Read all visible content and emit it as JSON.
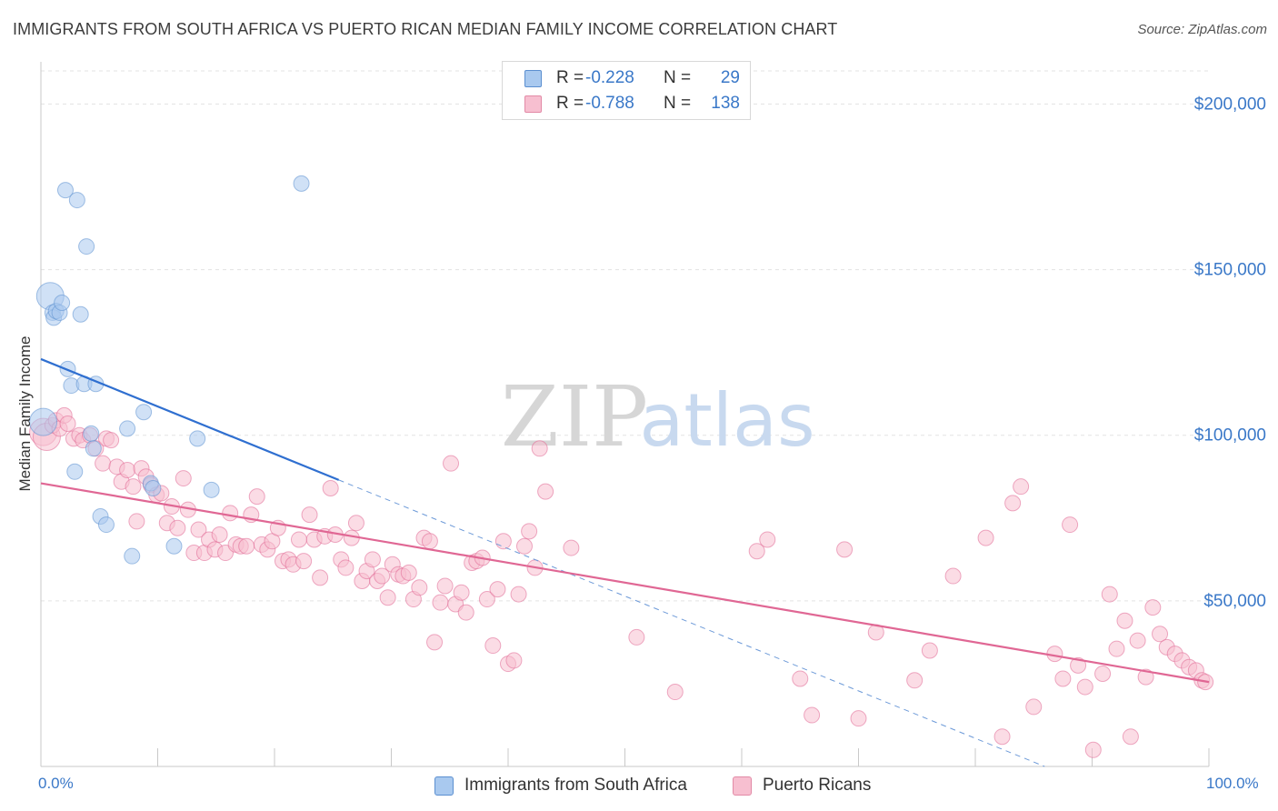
{
  "title": "IMMIGRANTS FROM SOUTH AFRICA VS PUERTO RICAN MEDIAN FAMILY INCOME CORRELATION CHART",
  "source": "Source: ZipAtlas.com",
  "watermark": {
    "zip": "ZIP",
    "atlas": "atlas"
  },
  "legend": {
    "rows": [
      {
        "r_label": "R =",
        "r_value": "-0.228",
        "n_label": "N =",
        "n_value": "29",
        "color": "#a9c9ef",
        "border": "#5b8fd0"
      },
      {
        "r_label": "R =",
        "r_value": "-0.788",
        "n_label": "N =",
        "n_value": "138",
        "color": "#f7bfd0",
        "border": "#e28aa6"
      }
    ]
  },
  "bottom_legend": [
    {
      "label": "Immigrants from South Africa",
      "color": "#a9c9ef",
      "border": "#5b8fd0"
    },
    {
      "label": "Puerto Ricans",
      "color": "#f7bfd0",
      "border": "#e28aa6"
    }
  ],
  "chart_data": {
    "type": "scatter",
    "title": "IMMIGRANTS FROM SOUTH AFRICA VS PUERTO RICAN MEDIAN FAMILY INCOME CORRELATION CHART",
    "xlabel": "",
    "ylabel": "Median Family Income",
    "xlim": [
      0,
      100
    ],
    "ylim": [
      0,
      210000
    ],
    "x_tick_labels": [
      "0.0%",
      "100.0%"
    ],
    "y_ticks": [
      50000,
      100000,
      150000,
      200000
    ],
    "y_tick_labels": [
      "$50,000",
      "$100,000",
      "$150,000",
      "$200,000"
    ],
    "grid": true,
    "series": [
      {
        "name": "Immigrants from South Africa",
        "color": "#5b8fd0",
        "fill": "#a9c9ef",
        "trend": {
          "x0": 0,
          "y0": 123000,
          "x1": 25.5,
          "y1": 86500,
          "dashed_to_x": 100
        },
        "points": [
          [
            0.2,
            104000
          ],
          [
            0.8,
            142000
          ],
          [
            1.0,
            137000
          ],
          [
            1.1,
            135500
          ],
          [
            1.3,
            137500
          ],
          [
            1.6,
            137000
          ],
          [
            1.8,
            140000
          ],
          [
            2.1,
            174000
          ],
          [
            2.3,
            120000
          ],
          [
            2.6,
            115000
          ],
          [
            2.9,
            89000
          ],
          [
            3.1,
            171000
          ],
          [
            3.4,
            136500
          ],
          [
            3.7,
            115500
          ],
          [
            3.9,
            157000
          ],
          [
            4.3,
            100500
          ],
          [
            4.5,
            96000
          ],
          [
            4.7,
            115500
          ],
          [
            5.1,
            75500
          ],
          [
            5.6,
            73000
          ],
          [
            7.4,
            102000
          ],
          [
            7.8,
            63500
          ],
          [
            8.8,
            107000
          ],
          [
            9.4,
            85500
          ],
          [
            9.6,
            84000
          ],
          [
            11.4,
            66500
          ],
          [
            13.4,
            99000
          ],
          [
            14.6,
            83500
          ],
          [
            22.3,
            176000
          ]
        ]
      },
      {
        "name": "Puerto Ricans",
        "color": "#e06794",
        "fill": "#f7bfd0",
        "trend": {
          "x0": 0,
          "y0": 85500,
          "x1": 100,
          "y1": 25500
        },
        "points": [
          [
            0.2,
            101000
          ],
          [
            0.5,
            99500
          ],
          [
            1.0,
            103000
          ],
          [
            1.3,
            104500
          ],
          [
            1.6,
            102000
          ],
          [
            2.0,
            106000
          ],
          [
            2.3,
            103500
          ],
          [
            2.8,
            99000
          ],
          [
            3.3,
            100000
          ],
          [
            3.6,
            98500
          ],
          [
            4.2,
            100000
          ],
          [
            4.7,
            96000
          ],
          [
            5.3,
            91500
          ],
          [
            5.6,
            99000
          ],
          [
            6.0,
            98500
          ],
          [
            6.5,
            90500
          ],
          [
            6.9,
            86000
          ],
          [
            7.4,
            89500
          ],
          [
            7.9,
            84500
          ],
          [
            8.2,
            74000
          ],
          [
            8.6,
            90000
          ],
          [
            9.0,
            87500
          ],
          [
            9.4,
            85000
          ],
          [
            9.9,
            82000
          ],
          [
            10.3,
            82500
          ],
          [
            10.8,
            73500
          ],
          [
            11.2,
            78500
          ],
          [
            11.7,
            72000
          ],
          [
            12.2,
            87000
          ],
          [
            12.6,
            77500
          ],
          [
            13.1,
            64500
          ],
          [
            13.5,
            71500
          ],
          [
            14.0,
            64500
          ],
          [
            14.4,
            68500
          ],
          [
            14.9,
            65500
          ],
          [
            15.3,
            70000
          ],
          [
            15.8,
            64500
          ],
          [
            16.2,
            76500
          ],
          [
            16.7,
            67000
          ],
          [
            17.1,
            66500
          ],
          [
            17.6,
            66500
          ],
          [
            18.0,
            76000
          ],
          [
            18.5,
            81500
          ],
          [
            18.9,
            67000
          ],
          [
            19.4,
            65500
          ],
          [
            19.8,
            68000
          ],
          [
            20.3,
            72000
          ],
          [
            20.7,
            62000
          ],
          [
            21.2,
            62500
          ],
          [
            21.6,
            61000
          ],
          [
            22.1,
            68500
          ],
          [
            22.5,
            62000
          ],
          [
            23.0,
            76000
          ],
          [
            23.4,
            68500
          ],
          [
            23.9,
            57000
          ],
          [
            24.3,
            69500
          ],
          [
            24.8,
            84000
          ],
          [
            25.2,
            70000
          ],
          [
            25.7,
            62500
          ],
          [
            26.1,
            60000
          ],
          [
            26.6,
            69000
          ],
          [
            27.0,
            73500
          ],
          [
            27.5,
            56000
          ],
          [
            27.9,
            59000
          ],
          [
            28.4,
            62500
          ],
          [
            28.8,
            56000
          ],
          [
            29.2,
            57500
          ],
          [
            29.7,
            51000
          ],
          [
            30.1,
            61000
          ],
          [
            30.6,
            58000
          ],
          [
            31.0,
            57500
          ],
          [
            31.5,
            58500
          ],
          [
            31.9,
            50500
          ],
          [
            32.4,
            54000
          ],
          [
            32.8,
            69000
          ],
          [
            33.3,
            68000
          ],
          [
            33.7,
            37500
          ],
          [
            34.2,
            49500
          ],
          [
            34.6,
            54500
          ],
          [
            35.1,
            91500
          ],
          [
            35.5,
            49000
          ],
          [
            36.0,
            52500
          ],
          [
            36.4,
            46500
          ],
          [
            36.9,
            61500
          ],
          [
            37.3,
            62000
          ],
          [
            37.8,
            63000
          ],
          [
            38.2,
            50500
          ],
          [
            38.7,
            36500
          ],
          [
            39.1,
            53500
          ],
          [
            39.6,
            68000
          ],
          [
            40.0,
            31000
          ],
          [
            40.5,
            32000
          ],
          [
            40.9,
            52000
          ],
          [
            41.4,
            66500
          ],
          [
            41.8,
            71000
          ],
          [
            42.3,
            60000
          ],
          [
            42.7,
            96000
          ],
          [
            43.2,
            83000
          ],
          [
            45.4,
            66000
          ],
          [
            51.0,
            39000
          ],
          [
            54.3,
            22500
          ],
          [
            61.3,
            65000
          ],
          [
            62.2,
            68500
          ],
          [
            65.0,
            26500
          ],
          [
            66.0,
            15500
          ],
          [
            68.8,
            65500
          ],
          [
            70.0,
            14500
          ],
          [
            71.5,
            40500
          ],
          [
            74.8,
            26000
          ],
          [
            76.1,
            35000
          ],
          [
            78.1,
            57500
          ],
          [
            80.9,
            69000
          ],
          [
            82.3,
            9000
          ],
          [
            83.2,
            79500
          ],
          [
            83.9,
            84500
          ],
          [
            85.0,
            18000
          ],
          [
            86.8,
            34000
          ],
          [
            87.5,
            26500
          ],
          [
            88.1,
            73000
          ],
          [
            88.8,
            30500
          ],
          [
            89.4,
            24000
          ],
          [
            90.1,
            5000
          ],
          [
            90.9,
            28000
          ],
          [
            91.5,
            52000
          ],
          [
            92.1,
            35500
          ],
          [
            92.8,
            44000
          ],
          [
            93.3,
            9000
          ],
          [
            93.9,
            38000
          ],
          [
            94.6,
            27000
          ],
          [
            95.2,
            48000
          ],
          [
            95.8,
            40000
          ],
          [
            96.4,
            36000
          ],
          [
            97.1,
            34000
          ],
          [
            97.7,
            32000
          ],
          [
            98.3,
            30000
          ],
          [
            98.9,
            29000
          ],
          [
            99.4,
            26000
          ],
          [
            99.7,
            25500
          ]
        ]
      }
    ]
  }
}
